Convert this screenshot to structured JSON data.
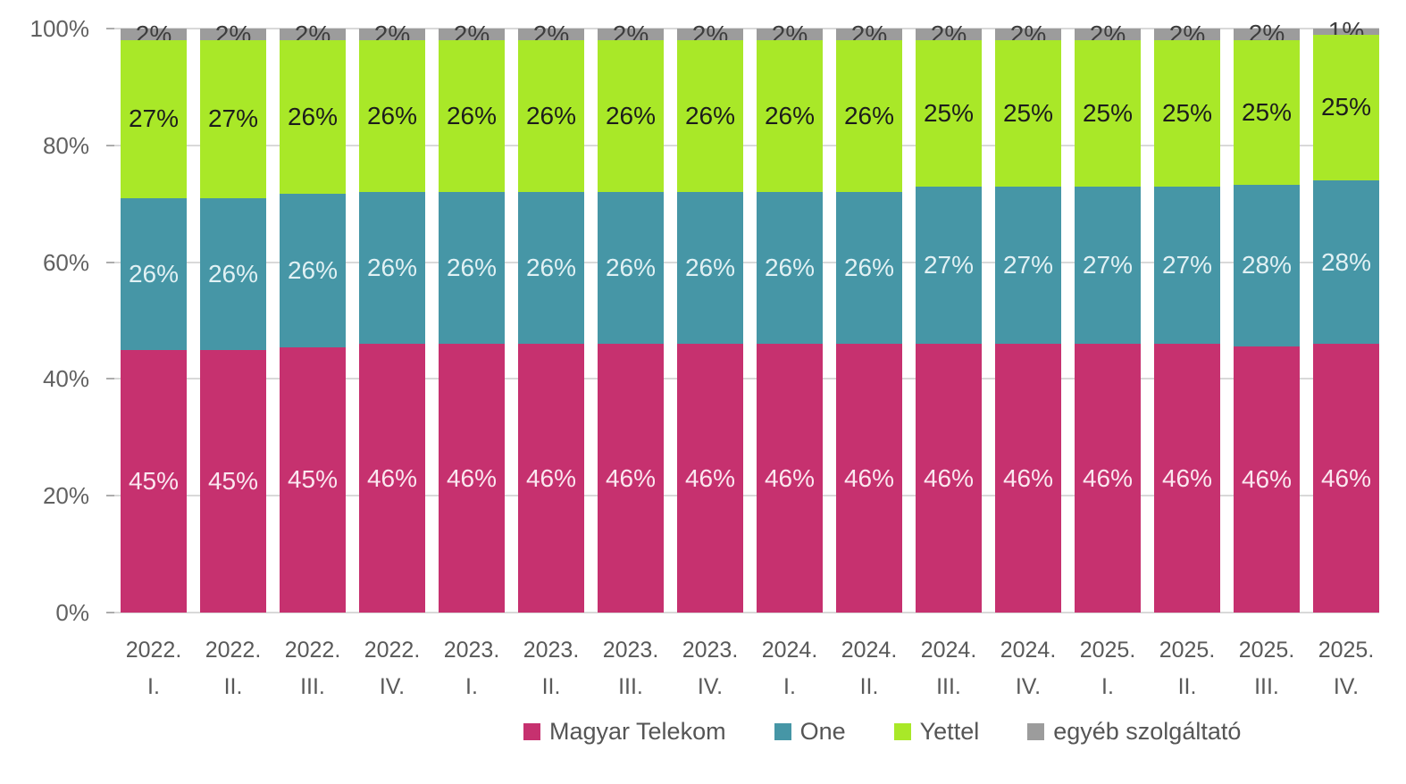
{
  "chart_data": {
    "type": "bar",
    "variant": "stacked-100-percent",
    "title": "",
    "unit": "%",
    "categories": [
      {
        "line1": "2022.",
        "line2": "I."
      },
      {
        "line1": "2022.",
        "line2": "II."
      },
      {
        "line1": "2022.",
        "line2": "III."
      },
      {
        "line1": "2022.",
        "line2": "IV."
      },
      {
        "line1": "2023.",
        "line2": "I."
      },
      {
        "line1": "2023.",
        "line2": "II."
      },
      {
        "line1": "2023.",
        "line2": "III."
      },
      {
        "line1": "2023.",
        "line2": "IV."
      },
      {
        "line1": "2024.",
        "line2": "I."
      },
      {
        "line1": "2024.",
        "line2": "II."
      },
      {
        "line1": "2024.",
        "line2": "III."
      },
      {
        "line1": "2024.",
        "line2": "IV."
      },
      {
        "line1": "2025.",
        "line2": "I."
      },
      {
        "line1": "2025.",
        "line2": "II."
      },
      {
        "line1": "2025.",
        "line2": "III."
      },
      {
        "line1": "2025.",
        "line2": "IV."
      }
    ],
    "series": [
      {
        "name": "Magyar Telekom",
        "color": "#C6316F",
        "label_color": "#FBE7F0",
        "values": [
          45,
          45,
          45,
          46,
          46,
          46,
          46,
          46,
          46,
          46,
          46,
          46,
          46,
          46,
          46,
          46
        ]
      },
      {
        "name": "One",
        "color": "#4696A6",
        "label_color": "#E1F1F4",
        "values": [
          26,
          26,
          26,
          26,
          26,
          26,
          26,
          26,
          26,
          26,
          27,
          27,
          27,
          27,
          28,
          28
        ]
      },
      {
        "name": "Yettel",
        "color": "#A9E828",
        "label_color": "#1C1C1C",
        "values": [
          27,
          27,
          26,
          26,
          26,
          26,
          26,
          26,
          26,
          26,
          25,
          25,
          25,
          25,
          25,
          25
        ]
      },
      {
        "name": "egyéb szolgáltató",
        "color": "#9C9C9C",
        "label_color": "#3D3D3D",
        "values": [
          2,
          2,
          2,
          2,
          2,
          2,
          2,
          2,
          2,
          2,
          2,
          2,
          2,
          2,
          2,
          1
        ]
      }
    ],
    "y_axis": {
      "ticks": [
        "0%",
        "20%",
        "40%",
        "60%",
        "80%",
        "100%"
      ],
      "min": 0,
      "max": 100,
      "grid": true
    },
    "legend": {
      "position": "bottom",
      "items": [
        "Magyar Telekom",
        "One",
        "Yettel",
        "egyéb szolgáltató"
      ]
    },
    "label_format": "{value}%",
    "style": {
      "background": "#FFFFFF",
      "gridline_color": "#D9D9D9",
      "tick_color": "#ACACAC",
      "axis_text_color": "#616161",
      "category_text_color": "#595959",
      "legend_text_color": "#555555"
    }
  }
}
